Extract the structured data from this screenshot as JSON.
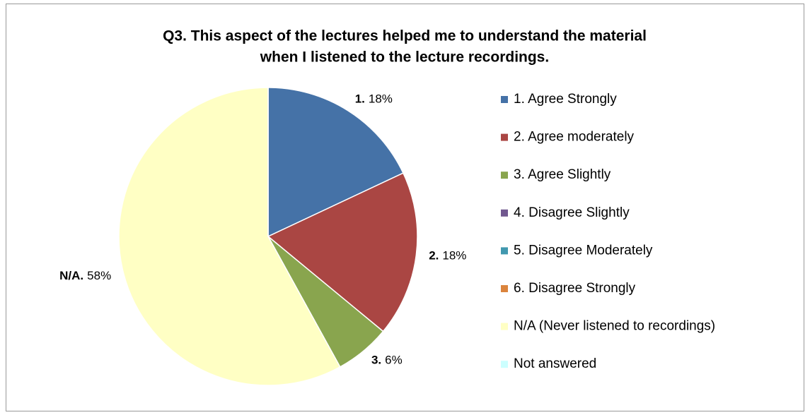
{
  "chart_data": {
    "type": "pie",
    "title": [
      "Q3. This aspect of the lectures helped me to understand the material",
      "when I listened to the lecture recordings."
    ],
    "categories": [
      "1. Agree Strongly",
      "2. Agree moderately",
      "3. Agree Slightly",
      "4. Disagree Slightly",
      "5. Disagree Moderately",
      "6. Disagree Strongly",
      "N/A (Never listened to recordings)",
      "Not answered"
    ],
    "values": [
      18,
      18,
      6,
      0,
      0,
      0,
      58,
      0
    ],
    "label_names": [
      "1.",
      "2.",
      "3.",
      null,
      null,
      null,
      "N/A.",
      null
    ],
    "value_labels": [
      "18%",
      "18%",
      "6%",
      null,
      null,
      null,
      "58%",
      null
    ],
    "colors": [
      "#4572a7",
      "#aa4643",
      "#89a54e",
      "#71588f",
      "#4198af",
      "#db843d",
      "#ffffc4",
      "#ccffff"
    ],
    "legend": "right"
  }
}
